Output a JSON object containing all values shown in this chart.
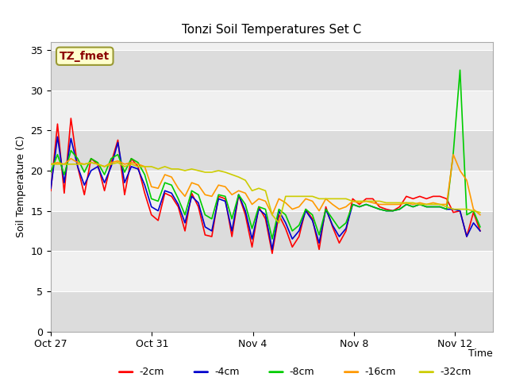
{
  "title": "Tonzi Soil Temperatures Set C",
  "xlabel": "Time",
  "ylabel": "Soil Temperature (C)",
  "ylim": [
    0,
    36
  ],
  "yticks": [
    0,
    5,
    10,
    15,
    20,
    25,
    30,
    35
  ],
  "plot_bg_light": "#f0f0f0",
  "plot_bg_dark": "#dcdcdc",
  "annotation_text": "TZ_fmet",
  "annotation_color": "#8b0000",
  "annotation_bg": "#ffffcc",
  "annotation_border": "#999933",
  "x_tick_labels": [
    "Oct 27",
    "Oct 31",
    "Nov 4",
    "Nov 8",
    "Nov 12"
  ],
  "legend_labels": [
    "-2cm",
    "-4cm",
    "-8cm",
    "-16cm",
    "-32cm"
  ],
  "legend_colors": [
    "#ff0000",
    "#0000cc",
    "#00cc00",
    "#ff9900",
    "#cccc00"
  ],
  "line_colors": [
    "#ff0000",
    "#0000cc",
    "#00cc00",
    "#ff9900",
    "#cccc00"
  ],
  "series_2cm": [
    17.5,
    25.8,
    17.2,
    26.5,
    20.5,
    17.0,
    21.5,
    20.8,
    17.5,
    21.0,
    23.8,
    17.0,
    21.5,
    20.5,
    17.2,
    14.5,
    13.8,
    17.2,
    16.8,
    15.5,
    12.5,
    17.2,
    15.5,
    12.0,
    11.8,
    16.8,
    16.5,
    11.8,
    17.0,
    14.5,
    10.5,
    15.5,
    14.0,
    9.7,
    14.5,
    12.8,
    10.5,
    11.8,
    15.2,
    14.0,
    10.2,
    15.5,
    13.0,
    11.0,
    12.5,
    16.5,
    15.8,
    16.5,
    16.5,
    15.5,
    15.2,
    15.0,
    15.5,
    16.8,
    16.5,
    16.8,
    16.5,
    16.8,
    16.8,
    16.5,
    14.8,
    15.0,
    11.8,
    14.8,
    12.5
  ],
  "series_4cm": [
    17.8,
    24.2,
    18.5,
    24.0,
    20.5,
    18.2,
    20.0,
    20.5,
    18.5,
    20.5,
    23.5,
    18.5,
    20.5,
    20.2,
    18.2,
    15.5,
    15.0,
    17.5,
    17.2,
    15.8,
    13.5,
    16.8,
    16.0,
    13.0,
    12.5,
    16.5,
    16.2,
    12.5,
    17.0,
    15.0,
    11.5,
    15.2,
    14.5,
    10.2,
    15.0,
    13.5,
    11.5,
    12.5,
    15.0,
    13.8,
    11.0,
    15.2,
    13.2,
    11.8,
    12.8,
    15.8,
    15.5,
    15.8,
    15.5,
    15.2,
    15.0,
    15.0,
    15.2,
    15.8,
    15.5,
    15.8,
    15.5,
    15.5,
    15.5,
    15.2,
    15.2,
    15.0,
    11.8,
    13.5,
    12.5
  ],
  "series_8cm": [
    19.8,
    22.0,
    19.5,
    22.5,
    21.5,
    19.8,
    21.5,
    21.0,
    19.5,
    21.5,
    22.0,
    19.8,
    21.5,
    21.0,
    19.5,
    16.5,
    16.2,
    18.5,
    18.2,
    16.5,
    14.5,
    17.5,
    17.0,
    14.5,
    14.0,
    17.0,
    16.8,
    14.0,
    17.0,
    15.8,
    12.8,
    15.5,
    15.2,
    11.5,
    15.2,
    14.5,
    12.5,
    13.2,
    15.2,
    14.5,
    12.0,
    15.2,
    14.0,
    12.8,
    13.5,
    15.8,
    15.5,
    15.8,
    15.5,
    15.2,
    15.0,
    15.0,
    15.2,
    15.8,
    15.5,
    15.8,
    15.5,
    15.5,
    15.5,
    15.2,
    22.2,
    32.5,
    14.5,
    15.0,
    13.0
  ],
  "series_16cm": [
    20.8,
    21.0,
    20.8,
    21.5,
    21.0,
    20.8,
    21.0,
    20.8,
    20.5,
    21.0,
    21.2,
    20.8,
    21.0,
    20.8,
    20.5,
    18.0,
    17.8,
    19.5,
    19.2,
    17.8,
    16.8,
    18.5,
    18.2,
    17.0,
    16.8,
    18.2,
    18.0,
    17.0,
    17.5,
    17.2,
    15.8,
    16.5,
    16.2,
    14.5,
    16.5,
    16.0,
    15.2,
    15.5,
    16.5,
    16.2,
    15.0,
    16.5,
    15.8,
    15.2,
    15.5,
    16.2,
    16.0,
    16.2,
    16.0,
    15.8,
    15.8,
    15.8,
    15.8,
    16.0,
    15.8,
    16.0,
    15.8,
    16.0,
    15.8,
    15.8,
    22.0,
    20.0,
    18.8,
    15.2,
    14.5
  ],
  "series_32cm": [
    20.8,
    20.8,
    20.8,
    20.8,
    20.8,
    20.8,
    21.0,
    20.8,
    20.5,
    20.8,
    21.0,
    20.5,
    20.8,
    20.5,
    20.5,
    20.5,
    20.2,
    20.5,
    20.2,
    20.2,
    20.0,
    20.2,
    20.0,
    19.8,
    19.8,
    20.0,
    19.8,
    19.5,
    19.2,
    18.8,
    17.5,
    17.8,
    17.5,
    14.5,
    13.5,
    16.8,
    16.8,
    16.8,
    16.8,
    16.8,
    16.5,
    16.5,
    16.5,
    16.5,
    16.5,
    16.2,
    16.2,
    16.2,
    16.2,
    16.2,
    16.0,
    16.0,
    16.0,
    16.0,
    16.0,
    15.8,
    15.8,
    15.8,
    15.8,
    15.5,
    15.2,
    15.2,
    15.2,
    15.0,
    14.8
  ]
}
